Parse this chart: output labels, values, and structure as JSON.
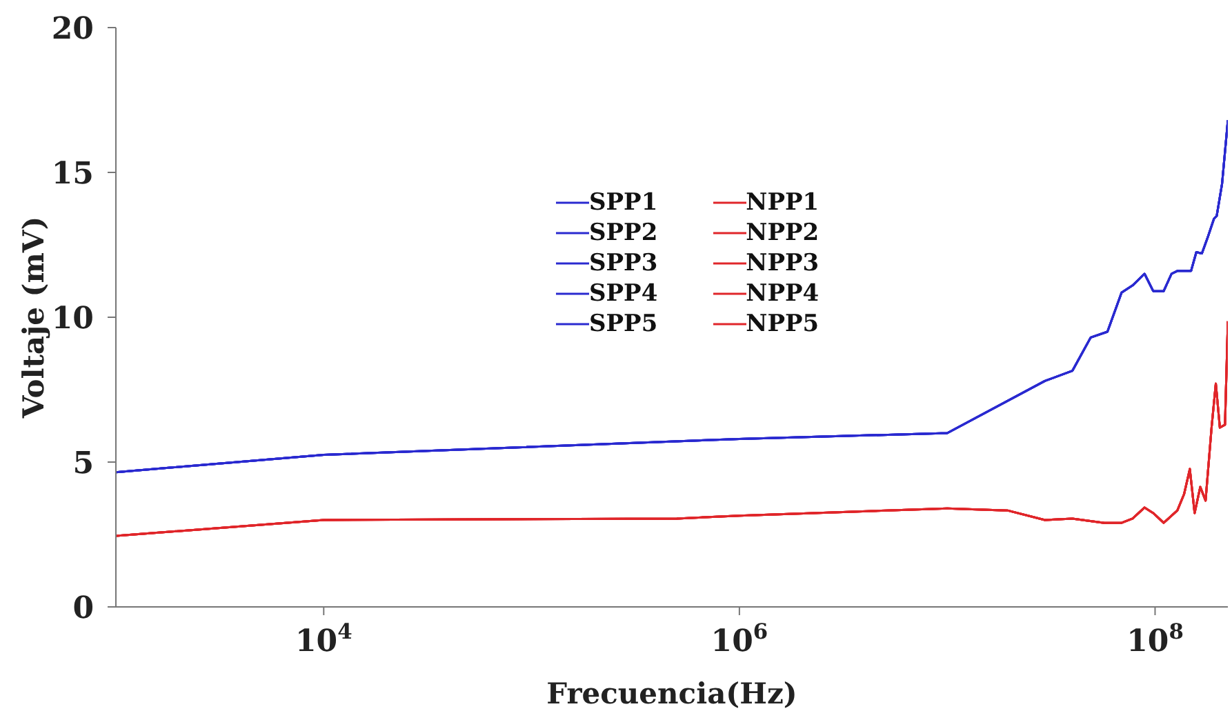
{
  "chart_data": {
    "type": "line",
    "xlabel": "Frecuencia(Hz)",
    "ylabel": "Voltaje (mV)",
    "log": "x",
    "grid": false,
    "legend": "top",
    "line_style": "solid",
    "marker": "none",
    "xlim": [
      1000,
      224000000
    ],
    "xticks": [
      {
        "value": 10000,
        "label": "10$^{4}$"
      },
      {
        "value": 1000000,
        "label": "10$^{6}$"
      },
      {
        "value": 100000000,
        "label": "10$^{8}$"
      }
    ],
    "ylim": [
      0,
      20
    ],
    "yticks": [
      0,
      5,
      10,
      15,
      20
    ],
    "series": [
      {
        "name": "SPP1",
        "color": "#2a2ad0",
        "x": [
          1000,
          10000,
          1000000,
          10000000,
          29500000,
          40000000,
          49000000,
          59000000,
          69000000,
          78000000,
          89000000,
          98000000,
          110000000,
          120000000,
          128000000,
          149000000,
          158000000,
          168000000,
          180000000,
          192000000,
          198000000,
          210000000,
          224000000
        ],
        "values": [
          4.65,
          5.25,
          5.8,
          6.0,
          7.8,
          8.15,
          9.3,
          9.5,
          10.85,
          11.1,
          11.5,
          10.9,
          10.9,
          11.5,
          11.6,
          11.6,
          12.25,
          12.2,
          12.8,
          13.4,
          13.5,
          14.6,
          16.8
        ]
      },
      {
        "name": "SPP2",
        "color": "#2a2ad0",
        "x": [
          1000,
          10000,
          1000000,
          10000000,
          29500000,
          40000000,
          49000000,
          59000000,
          69000000,
          78000000,
          89000000,
          98000000,
          110000000,
          120000000,
          128000000,
          149000000,
          158000000,
          168000000,
          180000000,
          192000000,
          198000000,
          210000000,
          224000000
        ],
        "values": [
          4.65,
          5.25,
          5.8,
          6.0,
          7.8,
          8.15,
          9.3,
          9.5,
          10.85,
          11.1,
          11.5,
          10.9,
          10.9,
          11.5,
          11.6,
          11.6,
          12.25,
          12.2,
          12.8,
          13.4,
          13.5,
          14.6,
          16.8
        ]
      },
      {
        "name": "SPP3",
        "color": "#2a2ad0",
        "x": [
          1000,
          10000,
          1000000,
          10000000,
          29500000,
          40000000,
          49000000,
          59000000,
          69000000,
          78000000,
          89000000,
          98000000,
          110000000,
          120000000,
          128000000,
          149000000,
          158000000,
          168000000,
          180000000,
          192000000,
          198000000,
          210000000,
          224000000
        ],
        "values": [
          4.65,
          5.25,
          5.8,
          6.0,
          7.8,
          8.15,
          9.3,
          9.5,
          10.85,
          11.1,
          11.5,
          10.9,
          10.9,
          11.5,
          11.6,
          11.6,
          12.25,
          12.2,
          12.8,
          13.4,
          13.5,
          14.6,
          16.8
        ]
      },
      {
        "name": "SPP4",
        "color": "#2a2ad0",
        "x": [
          1000,
          10000,
          1000000,
          10000000,
          29500000,
          40000000,
          49000000,
          59000000,
          69000000,
          78000000,
          89000000,
          98000000,
          110000000,
          120000000,
          128000000,
          149000000,
          158000000,
          168000000,
          180000000,
          192000000,
          198000000,
          210000000,
          224000000
        ],
        "values": [
          4.65,
          5.25,
          5.8,
          6.0,
          7.8,
          8.15,
          9.3,
          9.5,
          10.85,
          11.1,
          11.5,
          10.9,
          10.9,
          11.5,
          11.6,
          11.6,
          12.25,
          12.2,
          12.8,
          13.4,
          13.5,
          14.6,
          16.8
        ]
      },
      {
        "name": "SPP5",
        "color": "#2a2ad0",
        "x": [
          1000,
          10000,
          1000000,
          10000000,
          29500000,
          40000000,
          49000000,
          59000000,
          69000000,
          78000000,
          89000000,
          98000000,
          110000000,
          120000000,
          128000000,
          149000000,
          158000000,
          168000000,
          180000000,
          192000000,
          198000000,
          210000000,
          224000000
        ],
        "values": [
          4.65,
          5.25,
          5.8,
          6.0,
          7.8,
          8.15,
          9.3,
          9.5,
          10.85,
          11.1,
          11.5,
          10.9,
          10.9,
          11.5,
          11.6,
          11.6,
          12.25,
          12.2,
          12.8,
          13.4,
          13.5,
          14.6,
          16.8
        ]
      },
      {
        "name": "NPP1",
        "color": "#e0262a",
        "x": [
          1000,
          10000,
          500000,
          1000000,
          10000000,
          19500000,
          29500000,
          40000000,
          57000000,
          69000000,
          78000000,
          89000000,
          98000000,
          110000000,
          128000000,
          138000000,
          147000000,
          155000000,
          165000000,
          175000000,
          187000000,
          196000000,
          205000000,
          217000000,
          224000000
        ],
        "values": [
          2.45,
          3.0,
          3.05,
          3.15,
          3.4,
          3.33,
          3.0,
          3.05,
          2.9,
          2.9,
          3.05,
          3.43,
          3.24,
          2.9,
          3.33,
          3.9,
          4.76,
          3.24,
          4.14,
          3.67,
          6.19,
          7.71,
          6.19,
          6.29,
          9.86
        ]
      },
      {
        "name": "NPP2",
        "color": "#e0262a",
        "x": [
          1000,
          10000,
          500000,
          1000000,
          10000000,
          19500000,
          29500000,
          40000000,
          57000000,
          69000000,
          78000000,
          89000000,
          98000000,
          110000000,
          128000000,
          138000000,
          147000000,
          155000000,
          165000000,
          175000000,
          187000000,
          196000000,
          205000000,
          217000000,
          224000000
        ],
        "values": [
          2.45,
          3.0,
          3.05,
          3.15,
          3.4,
          3.33,
          3.0,
          3.05,
          2.9,
          2.9,
          3.05,
          3.43,
          3.24,
          2.9,
          3.33,
          3.9,
          4.76,
          3.24,
          4.14,
          3.67,
          6.19,
          7.71,
          6.19,
          6.29,
          9.86
        ]
      },
      {
        "name": "NPP3",
        "color": "#e0262a",
        "x": [
          1000,
          10000,
          500000,
          1000000,
          10000000,
          19500000,
          29500000,
          40000000,
          57000000,
          69000000,
          78000000,
          89000000,
          98000000,
          110000000,
          128000000,
          138000000,
          147000000,
          155000000,
          165000000,
          175000000,
          187000000,
          196000000,
          205000000,
          217000000,
          224000000
        ],
        "values": [
          2.45,
          3.0,
          3.05,
          3.15,
          3.4,
          3.33,
          3.0,
          3.05,
          2.9,
          2.9,
          3.05,
          3.43,
          3.24,
          2.9,
          3.33,
          3.9,
          4.76,
          3.24,
          4.14,
          3.67,
          6.19,
          7.71,
          6.19,
          6.29,
          9.86
        ]
      },
      {
        "name": "NPP4",
        "color": "#e0262a",
        "x": [
          1000,
          10000,
          500000,
          1000000,
          10000000,
          19500000,
          29500000,
          40000000,
          57000000,
          69000000,
          78000000,
          89000000,
          98000000,
          110000000,
          128000000,
          138000000,
          147000000,
          155000000,
          165000000,
          175000000,
          187000000,
          196000000,
          205000000,
          217000000,
          224000000
        ],
        "values": [
          2.45,
          3.0,
          3.05,
          3.15,
          3.4,
          3.33,
          3.0,
          3.05,
          2.9,
          2.9,
          3.05,
          3.43,
          3.24,
          2.9,
          3.33,
          3.9,
          4.76,
          3.24,
          4.14,
          3.67,
          6.19,
          7.71,
          6.19,
          6.29,
          9.86
        ]
      },
      {
        "name": "NPP5",
        "color": "#e0262a",
        "x": [
          1000,
          10000,
          500000,
          1000000,
          10000000,
          19500000,
          29500000,
          40000000,
          57000000,
          69000000,
          78000000,
          89000000,
          98000000,
          110000000,
          128000000,
          138000000,
          147000000,
          155000000,
          165000000,
          175000000,
          187000000,
          196000000,
          205000000,
          217000000,
          224000000
        ],
        "values": [
          2.45,
          3.0,
          3.05,
          3.15,
          3.4,
          3.33,
          3.0,
          3.05,
          2.9,
          2.9,
          3.05,
          3.43,
          3.24,
          2.9,
          3.33,
          3.9,
          4.76,
          3.24,
          4.14,
          3.67,
          6.19,
          7.71,
          6.19,
          6.29,
          9.86
        ]
      }
    ]
  }
}
